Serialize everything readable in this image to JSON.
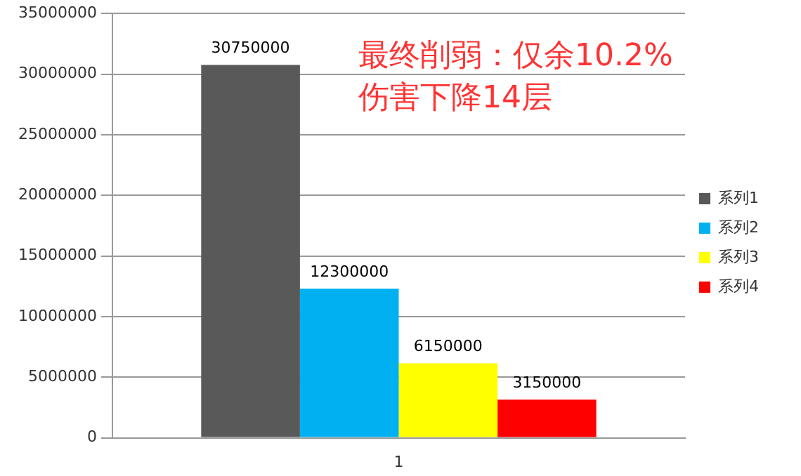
{
  "chart_data": {
    "type": "bar",
    "categories": [
      "1"
    ],
    "series": [
      {
        "name": "系列1",
        "color": "#595959",
        "values": [
          30750000
        ]
      },
      {
        "name": "系列2",
        "color": "#00b0f0",
        "values": [
          12300000
        ]
      },
      {
        "name": "系列3",
        "color": "#ffff00",
        "values": [
          6150000
        ]
      },
      {
        "name": "系列4",
        "color": "#ff0000",
        "values": [
          3150000
        ]
      }
    ],
    "ylim": [
      0,
      35000000
    ],
    "yticks": [
      0,
      5000000,
      10000000,
      15000000,
      20000000,
      25000000,
      30000000,
      35000000
    ],
    "grid": "y",
    "legend": "right",
    "data_labels": true,
    "annotations": [
      "最终削弱：仅余10.2%",
      "伤害下降14层"
    ]
  }
}
